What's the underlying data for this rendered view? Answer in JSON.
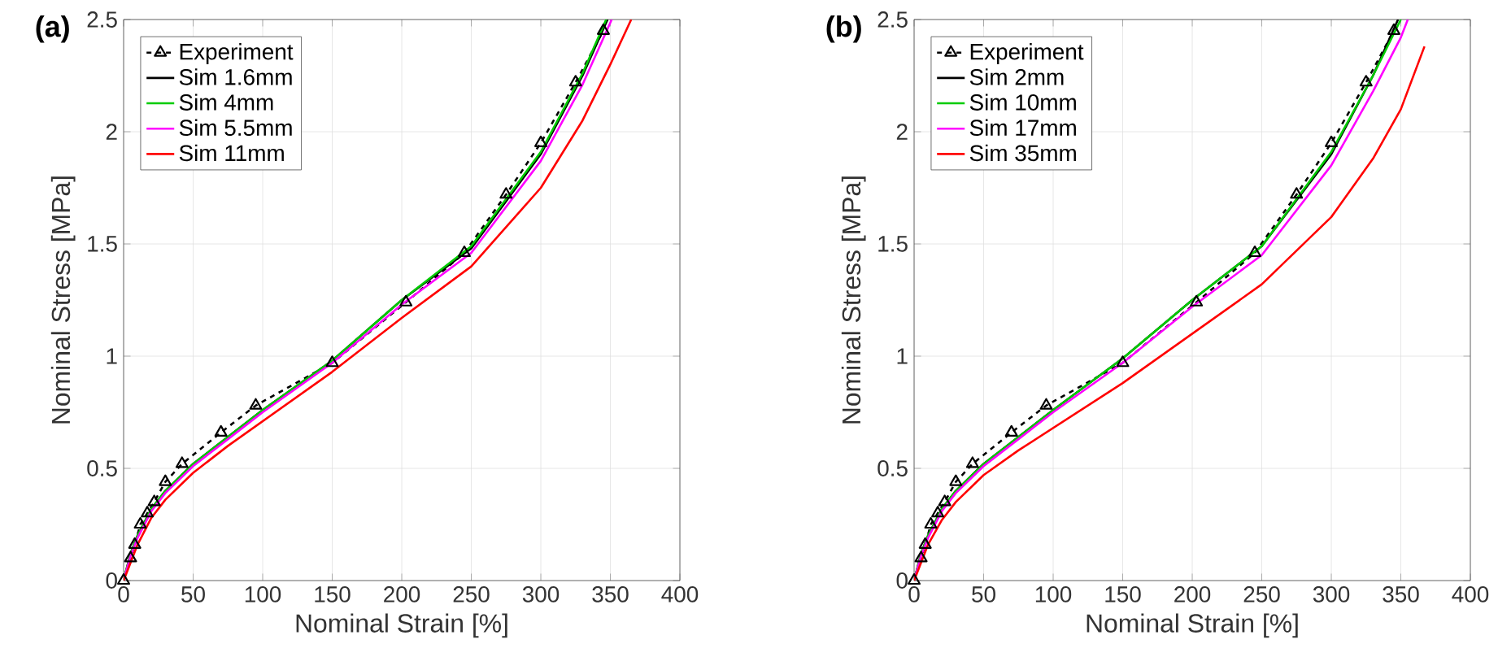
{
  "chart_data": [
    {
      "type": "line",
      "title": "(a)",
      "xlabel": "Nominal Strain [%]",
      "ylabel": "Nominal Stress [MPa]",
      "xlim": [
        0,
        400
      ],
      "ylim": [
        0,
        2.5
      ],
      "xticks": [
        0,
        50,
        100,
        150,
        200,
        250,
        300,
        350,
        400
      ],
      "yticks": [
        0,
        0.5,
        1,
        1.5,
        2,
        2.5
      ],
      "grid": true,
      "legend": "top left",
      "series": [
        {
          "name": "Experiment",
          "color": "#000000",
          "marker": "triangle",
          "line_style": "dashed",
          "x": [
            0,
            5,
            8,
            12,
            17,
            22,
            30,
            42,
            70,
            95,
            150,
            203,
            245,
            275,
            300,
            325,
            345
          ],
          "values": [
            0,
            0.1,
            0.16,
            0.25,
            0.3,
            0.35,
            0.44,
            0.52,
            0.66,
            0.78,
            0.97,
            1.24,
            1.46,
            1.72,
            1.95,
            2.22,
            2.45
          ]
        },
        {
          "name": "Sim 1.6mm",
          "color": "#000000",
          "marker": "none",
          "line_style": "solid",
          "x": [
            0,
            5,
            10,
            20,
            30,
            50,
            75,
            100,
            150,
            200,
            250,
            300,
            330,
            348
          ],
          "values": [
            0,
            0.12,
            0.2,
            0.32,
            0.4,
            0.52,
            0.64,
            0.76,
            0.98,
            1.25,
            1.48,
            1.9,
            2.25,
            2.5
          ]
        },
        {
          "name": "Sim 4mm",
          "color": "#00cc00",
          "marker": "none",
          "line_style": "solid",
          "x": [
            0,
            5,
            10,
            20,
            30,
            50,
            75,
            100,
            150,
            200,
            250,
            300,
            330,
            347
          ],
          "values": [
            0,
            0.12,
            0.2,
            0.32,
            0.4,
            0.52,
            0.64,
            0.76,
            0.98,
            1.25,
            1.49,
            1.91,
            2.26,
            2.5
          ]
        },
        {
          "name": "Sim 5.5mm",
          "color": "#ff00ff",
          "marker": "none",
          "line_style": "solid",
          "x": [
            0,
            5,
            10,
            20,
            30,
            50,
            75,
            100,
            150,
            200,
            250,
            300,
            330,
            351
          ],
          "values": [
            0,
            0.11,
            0.19,
            0.31,
            0.39,
            0.51,
            0.63,
            0.75,
            0.97,
            1.23,
            1.46,
            1.87,
            2.21,
            2.5
          ]
        },
        {
          "name": "Sim 11mm",
          "color": "#ff0000",
          "marker": "none",
          "line_style": "solid",
          "x": [
            0,
            5,
            10,
            20,
            30,
            50,
            75,
            100,
            150,
            200,
            250,
            300,
            330,
            350,
            365
          ],
          "values": [
            0,
            0.08,
            0.16,
            0.28,
            0.36,
            0.48,
            0.6,
            0.71,
            0.93,
            1.17,
            1.4,
            1.75,
            2.05,
            2.3,
            2.5
          ]
        }
      ]
    },
    {
      "type": "line",
      "title": "(b)",
      "xlabel": "Nominal Strain [%]",
      "ylabel": "Nominal Stress [MPa]",
      "xlim": [
        0,
        400
      ],
      "ylim": [
        0,
        2.5
      ],
      "xticks": [
        0,
        50,
        100,
        150,
        200,
        250,
        300,
        350,
        400
      ],
      "yticks": [
        0,
        0.5,
        1,
        1.5,
        2,
        2.5
      ],
      "grid": true,
      "legend": "top left",
      "series": [
        {
          "name": "Experiment",
          "color": "#000000",
          "marker": "triangle",
          "line_style": "dashed",
          "x": [
            0,
            5,
            8,
            12,
            17,
            22,
            30,
            42,
            70,
            95,
            150,
            203,
            245,
            275,
            300,
            325,
            345
          ],
          "values": [
            0,
            0.1,
            0.16,
            0.25,
            0.3,
            0.35,
            0.44,
            0.52,
            0.66,
            0.78,
            0.97,
            1.24,
            1.46,
            1.72,
            1.95,
            2.22,
            2.45
          ]
        },
        {
          "name": "Sim 2mm",
          "color": "#000000",
          "marker": "none",
          "line_style": "solid",
          "x": [
            0,
            5,
            10,
            20,
            30,
            50,
            75,
            100,
            150,
            200,
            250,
            300,
            330,
            348
          ],
          "values": [
            0,
            0.12,
            0.2,
            0.32,
            0.4,
            0.52,
            0.64,
            0.76,
            0.99,
            1.25,
            1.49,
            1.9,
            2.25,
            2.5
          ]
        },
        {
          "name": "Sim 10mm",
          "color": "#00cc00",
          "marker": "none",
          "line_style": "solid",
          "x": [
            0,
            5,
            10,
            20,
            30,
            50,
            75,
            100,
            150,
            200,
            250,
            300,
            330,
            350
          ],
          "values": [
            0,
            0.12,
            0.2,
            0.32,
            0.4,
            0.52,
            0.64,
            0.76,
            0.99,
            1.25,
            1.49,
            1.91,
            2.25,
            2.5
          ]
        },
        {
          "name": "Sim 17mm",
          "color": "#ff00ff",
          "marker": "none",
          "line_style": "solid",
          "x": [
            0,
            5,
            10,
            20,
            30,
            50,
            75,
            100,
            150,
            200,
            250,
            300,
            330,
            350,
            355
          ],
          "values": [
            0,
            0.11,
            0.19,
            0.31,
            0.39,
            0.51,
            0.63,
            0.75,
            0.97,
            1.22,
            1.45,
            1.85,
            2.18,
            2.42,
            2.5
          ]
        },
        {
          "name": "Sim 35mm",
          "color": "#ff0000",
          "marker": "none",
          "line_style": "solid",
          "x": [
            0,
            5,
            10,
            20,
            30,
            50,
            75,
            100,
            150,
            200,
            250,
            300,
            330,
            350,
            367
          ],
          "values": [
            0,
            0.08,
            0.16,
            0.27,
            0.35,
            0.47,
            0.58,
            0.68,
            0.88,
            1.1,
            1.32,
            1.62,
            1.88,
            2.1,
            2.38
          ]
        }
      ]
    }
  ]
}
